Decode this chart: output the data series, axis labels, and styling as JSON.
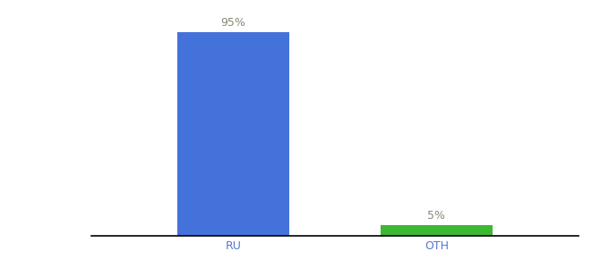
{
  "categories": [
    "RU",
    "OTH"
  ],
  "values": [
    95,
    5
  ],
  "bar_colors": [
    "#4472db",
    "#3cb832"
  ],
  "label_texts": [
    "95%",
    "5%"
  ],
  "ylim": [
    0,
    100
  ],
  "background_color": "#ffffff",
  "label_fontsize": 9,
  "tick_fontsize": 9,
  "tick_color": "#5577cc",
  "label_color": "#888877",
  "bar_width": 0.55
}
